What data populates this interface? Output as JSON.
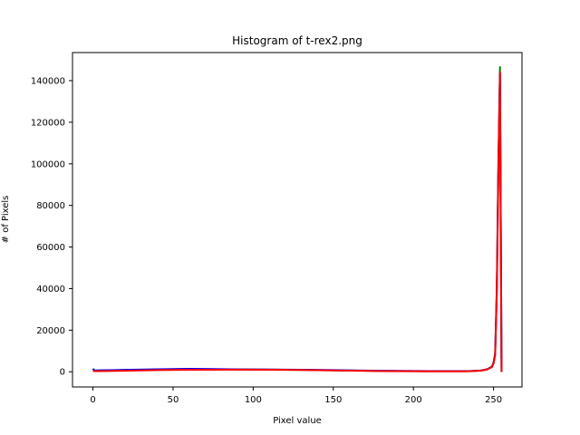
{
  "chart_data": {
    "type": "line",
    "title": "Histogram of t-rex2.png",
    "xlabel": "Pixel value",
    "ylabel": "# of Pixels",
    "xlim": [
      -12.75,
      267.75
    ],
    "ylim": [
      -7300,
      153500
    ],
    "x_ticks": [
      0,
      50,
      100,
      150,
      200,
      250
    ],
    "x_tick_labels": [
      "0",
      "50",
      "100",
      "150",
      "200",
      "250"
    ],
    "y_ticks": [
      0,
      20000,
      40000,
      60000,
      80000,
      100000,
      120000,
      140000
    ],
    "y_tick_labels": [
      "0",
      "20000",
      "40000",
      "60000",
      "80000",
      "100000",
      "120000",
      "140000"
    ],
    "grid": false,
    "legend": null,
    "series": [
      {
        "color": "#008000",
        "x": [
          0,
          1,
          5,
          20,
          40,
          60,
          75,
          90,
          110,
          130,
          150,
          180,
          210,
          235,
          242,
          246,
          249,
          250,
          251,
          252,
          253,
          254,
          255
        ],
        "y": [
          1500,
          600,
          650,
          800,
          1100,
          1300,
          1200,
          1150,
          1050,
          900,
          700,
          400,
          250,
          300,
          600,
          1200,
          2500,
          4500,
          9000,
          40000,
          100000,
          146500,
          0
        ]
      },
      {
        "color": "#0000ff",
        "x": [
          0,
          1,
          5,
          20,
          40,
          60,
          75,
          90,
          110,
          130,
          150,
          180,
          210,
          235,
          242,
          246,
          249,
          250,
          251,
          252,
          253,
          254,
          255
        ],
        "y": [
          1300,
          600,
          700,
          900,
          1200,
          1400,
          1300,
          1150,
          1100,
          1000,
          800,
          500,
          300,
          300,
          600,
          1200,
          2400,
          4200,
          8500,
          38000,
          98000,
          143500,
          0
        ]
      },
      {
        "color": "#ff0000",
        "x": [
          0,
          1,
          5,
          20,
          40,
          60,
          75,
          90,
          110,
          130,
          150,
          180,
          210,
          235,
          242,
          246,
          249,
          250,
          251,
          252,
          253,
          254,
          255
        ],
        "y": [
          500,
          300,
          350,
          500,
          800,
          1000,
          1000,
          1050,
          1000,
          850,
          650,
          350,
          200,
          250,
          550,
          1100,
          2300,
          4000,
          8000,
          37000,
          96000,
          144000,
          0
        ]
      }
    ]
  }
}
